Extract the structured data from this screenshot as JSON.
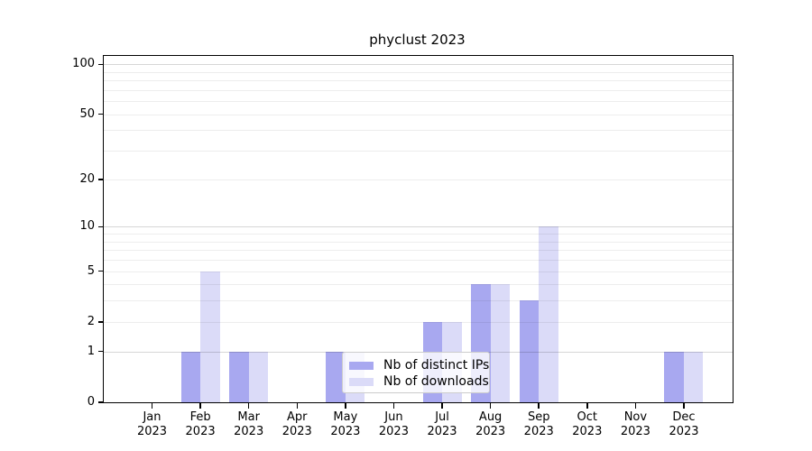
{
  "title": "phyclust 2023",
  "chart_data": {
    "type": "bar",
    "title": "phyclust 2023",
    "xlabel": "",
    "ylabel": "",
    "yscale": "log1p",
    "ylim": [
      0,
      113
    ],
    "grid": "horizontal",
    "legend_position": "inside-bottom-center",
    "categories": [
      "Jan 2023",
      "Feb 2023",
      "Mar 2023",
      "Apr 2023",
      "May 2023",
      "Jun 2023",
      "Jul 2023",
      "Aug 2023",
      "Sep 2023",
      "Oct 2023",
      "Nov 2023",
      "Dec 2023"
    ],
    "series": [
      {
        "name": "Nb of distinct IPs",
        "values": [
          0,
          1,
          1,
          0,
          1,
          0,
          2,
          4,
          3,
          0,
          0,
          1
        ]
      },
      {
        "name": "Nb of downloads",
        "values": [
          0,
          5,
          1,
          0,
          1,
          0,
          2,
          4,
          10,
          0,
          0,
          1
        ]
      }
    ]
  },
  "y_axis": {
    "tick_values": [
      0,
      1,
      2,
      5,
      10,
      20,
      50,
      100
    ],
    "tick_labels": [
      "0",
      "1",
      "2",
      "5",
      "10",
      "20",
      "50",
      "100"
    ],
    "grid_minor_values": [
      2,
      3,
      4,
      5,
      6,
      7,
      8,
      9,
      20,
      30,
      40,
      50,
      60,
      70,
      80,
      90
    ],
    "grid_major_values": [
      1,
      10,
      100
    ]
  },
  "x_axis": {
    "labels": [
      {
        "month": "Jan",
        "year": "2023"
      },
      {
        "month": "Feb",
        "year": "2023"
      },
      {
        "month": "Mar",
        "year": "2023"
      },
      {
        "month": "Apr",
        "year": "2023"
      },
      {
        "month": "May",
        "year": "2023"
      },
      {
        "month": "Jun",
        "year": "2023"
      },
      {
        "month": "Jul",
        "year": "2023"
      },
      {
        "month": "Aug",
        "year": "2023"
      },
      {
        "month": "Sep",
        "year": "2023"
      },
      {
        "month": "Oct",
        "year": "2023"
      },
      {
        "month": "Nov",
        "year": "2023"
      },
      {
        "month": "Dec",
        "year": "2023"
      }
    ]
  },
  "legend": {
    "items": [
      {
        "label": "Nb of distinct IPs",
        "series": "ips"
      },
      {
        "label": "Nb of downloads",
        "series": "downloads"
      }
    ]
  },
  "colors": {
    "bar_ips": "#a8a8f0",
    "bar_downloads": "#dbdbf8",
    "grid_minor": "rgba(0,0,0,0.07)",
    "grid_major": "rgba(0,0,0,0.16)",
    "axis": "#000000",
    "legend_border": "#cccccc",
    "background": "#ffffff"
  }
}
